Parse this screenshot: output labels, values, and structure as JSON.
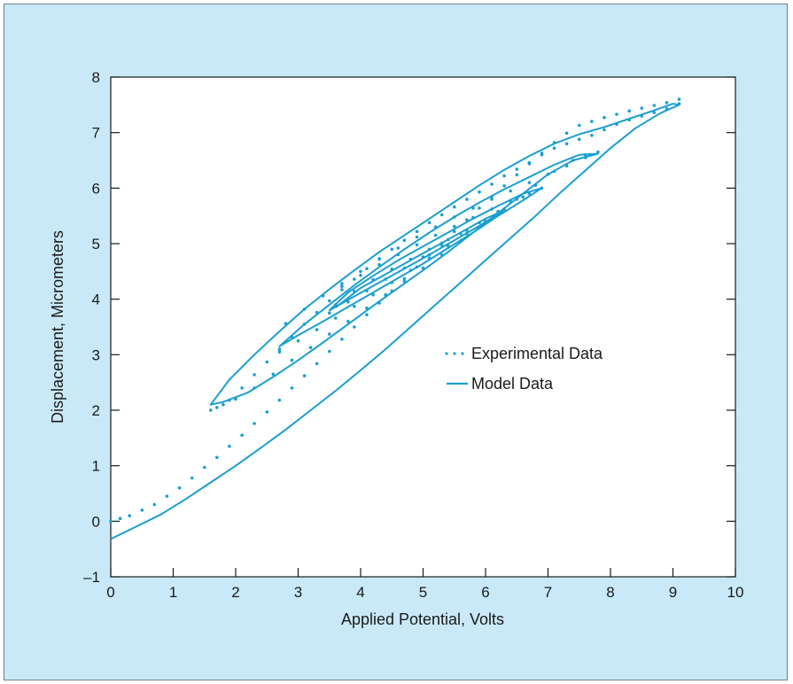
{
  "chart_data": {
    "type": "scatter",
    "xlabel": "Applied Potential, Volts",
    "ylabel": "Displacement, Micrometers",
    "xlim": [
      0,
      10
    ],
    "ylim": [
      -1,
      8
    ],
    "xticks": [
      "0",
      "1",
      "2",
      "3",
      "4",
      "5",
      "6",
      "7",
      "8",
      "9",
      "10"
    ],
    "yticks": [
      "–1",
      "0",
      "1",
      "2",
      "3",
      "4",
      "5",
      "6",
      "7",
      "8"
    ],
    "grid": false,
    "legend_position": "center-right",
    "colors": {
      "series": "#1a9fd0",
      "figure_background": "#c9e9f8",
      "plot_background": "#ffffff",
      "axis": "#1a1a1a"
    },
    "series": [
      {
        "name": "Experimental Data",
        "marker": "dot",
        "x": [
          0.0,
          0.15,
          0.3,
          0.5,
          0.7,
          0.9,
          1.1,
          1.3,
          1.5,
          1.7,
          1.9,
          2.1,
          2.3,
          2.5,
          2.7,
          2.9,
          3.1,
          3.3,
          3.5,
          3.7,
          3.9,
          4.1,
          4.3,
          4.5,
          4.7,
          4.9,
          5.1,
          5.3,
          5.5,
          5.7,
          5.9,
          6.1,
          6.3,
          6.5,
          6.7,
          6.9,
          7.1,
          7.3,
          7.5,
          7.7,
          7.9,
          8.1,
          8.3,
          8.5,
          8.7,
          8.9,
          9.1,
          9.1,
          8.9,
          8.7,
          8.5,
          8.3,
          8.1,
          7.9,
          7.7,
          7.5,
          7.3,
          7.1,
          6.9,
          6.7,
          6.5,
          6.3,
          6.1,
          5.9,
          5.7,
          5.5,
          5.3,
          5.1,
          4.9,
          4.7,
          4.5,
          4.3,
          4.1,
          3.9,
          3.7,
          3.5,
          3.3,
          3.1,
          2.9,
          2.7,
          2.5,
          2.3,
          2.1,
          1.9,
          1.7,
          1.6,
          1.8,
          2.0,
          2.3,
          2.6,
          2.9,
          3.2,
          3.5,
          3.8,
          4.1,
          4.4,
          4.7,
          5.0,
          5.3,
          5.6,
          5.9,
          6.2,
          6.5,
          6.8,
          7.1,
          7.4,
          7.6,
          7.8,
          7.6,
          7.3,
          7.0,
          6.7,
          6.4,
          6.1,
          5.8,
          5.5,
          5.2,
          4.9,
          4.6,
          4.3,
          4.0,
          3.7,
          3.4,
          3.1,
          2.8,
          2.7,
          3.0,
          3.3,
          3.6,
          3.9,
          4.2,
          4.5,
          4.8,
          5.1,
          5.4,
          5.7,
          6.0,
          6.3,
          6.6,
          6.9,
          6.7,
          6.4,
          6.1,
          5.8,
          5.5,
          5.2,
          4.9,
          4.6,
          4.3,
          4.0,
          3.7,
          3.5,
          3.8,
          4.1,
          4.4,
          4.7,
          5.0,
          5.3,
          5.6,
          5.9,
          6.2,
          6.0,
          5.7,
          5.4,
          5.1,
          4.8,
          4.5,
          4.2,
          3.9,
          3.6
        ],
        "y": [
          0.0,
          0.05,
          0.1,
          0.2,
          0.3,
          0.45,
          0.6,
          0.78,
          0.97,
          1.15,
          1.35,
          1.55,
          1.76,
          1.97,
          2.18,
          2.4,
          2.62,
          2.84,
          3.06,
          3.28,
          3.5,
          3.72,
          3.93,
          4.15,
          4.37,
          4.58,
          4.8,
          5.01,
          5.22,
          5.43,
          5.64,
          5.84,
          6.04,
          6.24,
          6.44,
          6.63,
          6.82,
          6.99,
          7.13,
          7.2,
          7.27,
          7.33,
          7.39,
          7.44,
          7.49,
          7.54,
          7.6,
          7.52,
          7.43,
          7.36,
          7.3,
          7.23,
          7.15,
          7.05,
          6.95,
          6.88,
          6.8,
          6.72,
          6.6,
          6.46,
          6.34,
          6.22,
          6.07,
          5.93,
          5.8,
          5.66,
          5.52,
          5.38,
          5.22,
          5.06,
          4.9,
          4.73,
          4.55,
          4.36,
          4.17,
          3.97,
          3.76,
          3.55,
          3.32,
          3.1,
          2.87,
          2.64,
          2.4,
          2.18,
          2.05,
          2.0,
          2.1,
          2.2,
          2.4,
          2.65,
          2.9,
          3.13,
          3.37,
          3.6,
          3.84,
          4.08,
          4.32,
          4.56,
          4.8,
          5.05,
          5.3,
          5.55,
          5.8,
          6.05,
          6.3,
          6.5,
          6.6,
          6.65,
          6.55,
          6.4,
          6.25,
          6.1,
          5.95,
          5.8,
          5.64,
          5.48,
          5.3,
          5.12,
          4.92,
          4.72,
          4.5,
          4.28,
          4.06,
          3.82,
          3.56,
          3.05,
          3.25,
          3.45,
          3.66,
          3.87,
          4.08,
          4.3,
          4.52,
          4.74,
          4.96,
          5.18,
          5.4,
          5.62,
          5.84,
          6.0,
          5.9,
          5.76,
          5.62,
          5.47,
          5.31,
          5.15,
          4.98,
          4.8,
          4.62,
          4.43,
          4.23,
          3.75,
          3.95,
          4.15,
          4.36,
          4.56,
          4.76,
          4.97,
          5.18,
          5.38,
          5.58,
          5.4,
          5.24,
          5.07,
          4.9,
          4.72,
          4.54,
          4.35,
          4.14,
          3.9
        ]
      },
      {
        "name": "Model Data",
        "marker": "line",
        "x": [
          0.0,
          0.4,
          0.8,
          1.2,
          1.6,
          2.0,
          2.4,
          2.8,
          3.2,
          3.6,
          4.0,
          4.4,
          4.8,
          5.2,
          5.6,
          6.0,
          6.4,
          6.8,
          7.2,
          7.6,
          8.0,
          8.4,
          8.8,
          9.1,
          9.0,
          8.7,
          8.3,
          7.9,
          7.5,
          7.1,
          6.7,
          6.3,
          5.9,
          5.5,
          5.1,
          4.7,
          4.3,
          3.9,
          3.5,
          3.1,
          2.7,
          2.3,
          1.9,
          1.6,
          1.8,
          2.2,
          2.6,
          3.0,
          3.4,
          3.8,
          4.2,
          4.6,
          5.0,
          5.4,
          5.8,
          6.2,
          6.6,
          7.0,
          7.4,
          7.8,
          7.5,
          7.1,
          6.7,
          6.3,
          5.9,
          5.5,
          5.1,
          4.7,
          4.3,
          3.9,
          3.5,
          3.1,
          2.7,
          3.0,
          3.4,
          3.8,
          4.2,
          4.6,
          5.0,
          5.4,
          5.8,
          6.2,
          6.6,
          6.9,
          6.6,
          6.2,
          5.8,
          5.4,
          5.0,
          4.6,
          4.2,
          3.8,
          3.5,
          3.9,
          4.3,
          4.7,
          5.1,
          5.5,
          5.9,
          6.3,
          6.0,
          5.6,
          5.2,
          4.8,
          4.4,
          4.0,
          3.6
        ],
        "y": [
          -0.32,
          -0.1,
          0.12,
          0.4,
          0.7,
          1.0,
          1.32,
          1.65,
          2.0,
          2.35,
          2.72,
          3.1,
          3.5,
          3.9,
          4.3,
          4.7,
          5.1,
          5.5,
          5.92,
          6.32,
          6.72,
          7.08,
          7.35,
          7.5,
          7.52,
          7.4,
          7.25,
          7.1,
          6.97,
          6.8,
          6.58,
          6.33,
          6.05,
          5.75,
          5.45,
          5.15,
          4.85,
          4.52,
          4.18,
          3.82,
          3.42,
          3.0,
          2.55,
          2.1,
          2.15,
          2.32,
          2.6,
          2.9,
          3.22,
          3.55,
          3.88,
          4.2,
          4.52,
          4.85,
          5.2,
          5.55,
          5.9,
          6.25,
          6.5,
          6.62,
          6.6,
          6.42,
          6.2,
          5.98,
          5.74,
          5.48,
          5.2,
          4.9,
          4.58,
          4.25,
          3.9,
          3.55,
          3.15,
          3.35,
          3.6,
          3.86,
          4.12,
          4.38,
          4.64,
          4.92,
          5.2,
          5.5,
          5.78,
          6.0,
          5.9,
          5.68,
          5.45,
          5.2,
          4.95,
          4.7,
          4.42,
          4.12,
          3.8,
          4.05,
          4.3,
          4.55,
          4.8,
          5.06,
          5.32,
          5.6,
          5.45,
          5.2,
          4.95,
          4.7,
          4.45,
          4.2,
          3.85
        ]
      }
    ],
    "legend": [
      {
        "label": "Experimental Data",
        "style": "dots"
      },
      {
        "label": "Model Data",
        "style": "line"
      }
    ]
  }
}
